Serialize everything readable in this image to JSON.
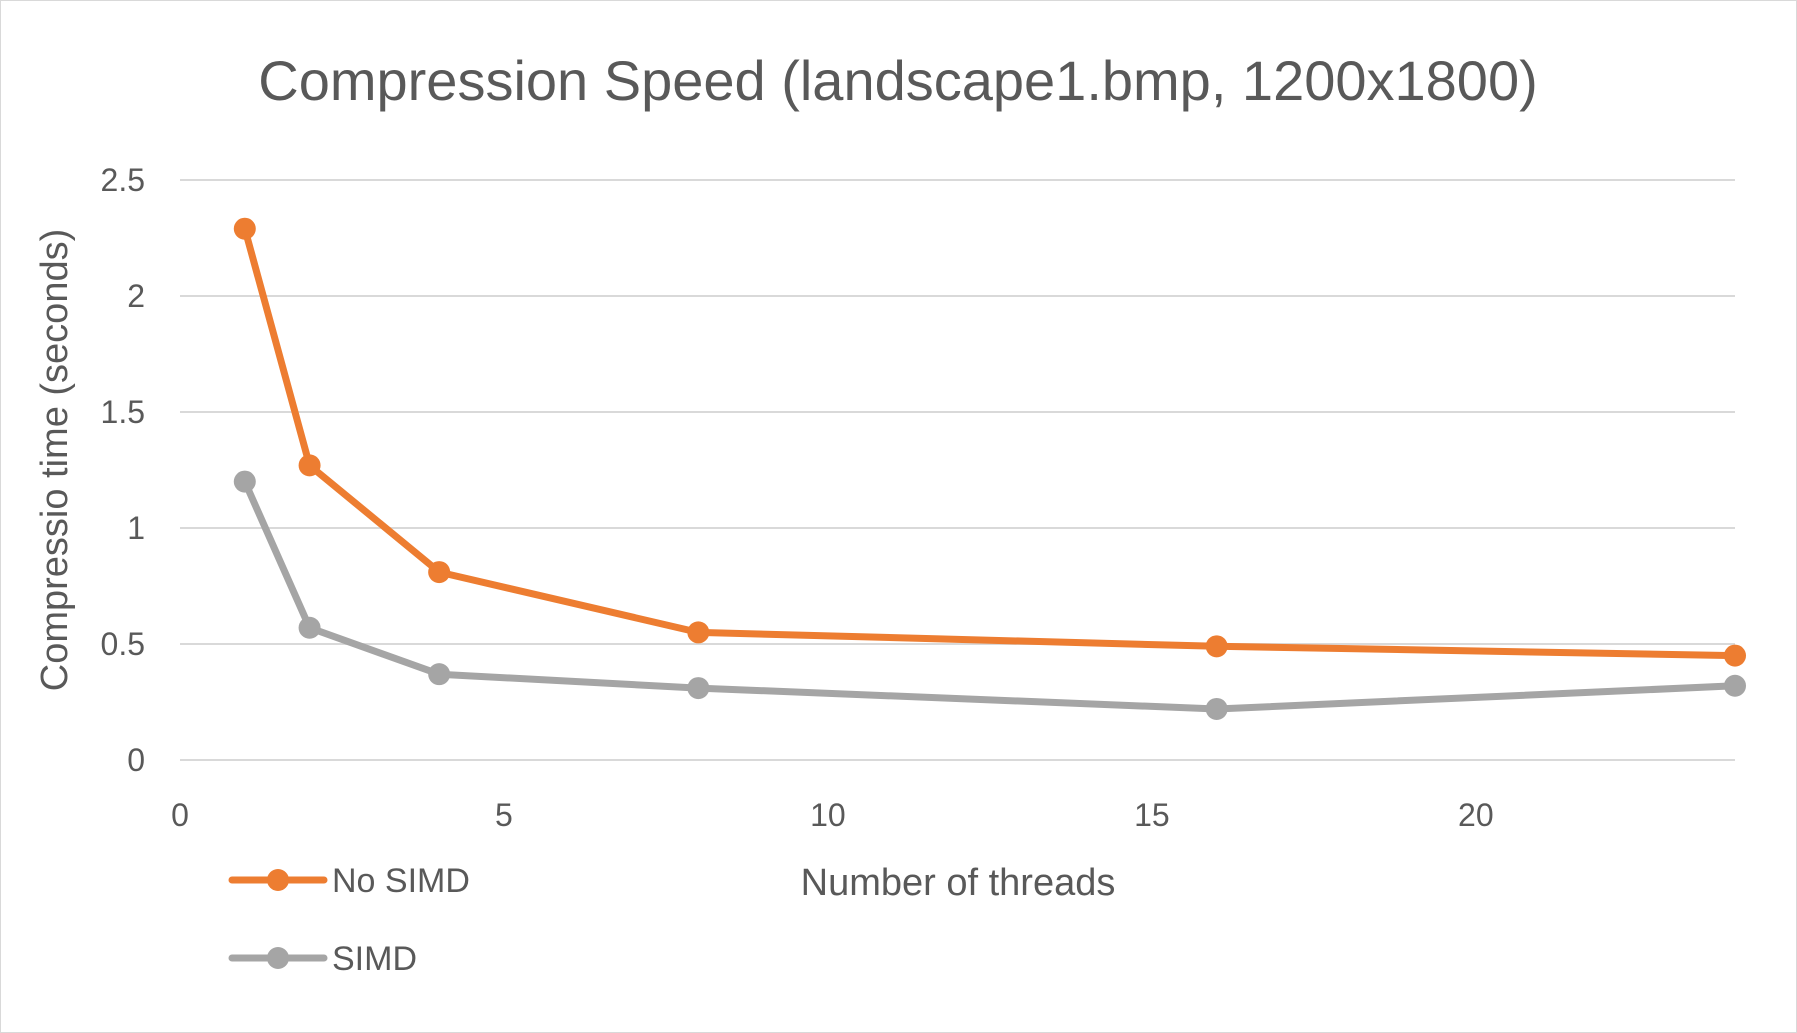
{
  "chart_data": {
    "type": "line",
    "title": "Compression Speed (landscape1.bmp, 1200x1800)",
    "xlabel": "Number of threads",
    "ylabel": "Compressio time (seconds)",
    "xlim": [
      0,
      24
    ],
    "ylim": [
      0,
      2.5
    ],
    "x_ticks": [
      "0",
      "5",
      "10",
      "15",
      "20"
    ],
    "y_ticks": [
      "0",
      "0.5",
      "1",
      "1.5",
      "2",
      "2.5"
    ],
    "grid": true,
    "legend_position": "bottom-left",
    "series": [
      {
        "name": "No SIMD",
        "color": "#ed7d31",
        "x": [
          1,
          2,
          4,
          8,
          16,
          24
        ],
        "y": [
          2.29,
          1.27,
          0.81,
          0.55,
          0.49,
          0.45
        ]
      },
      {
        "name": "SIMD",
        "color": "#a5a5a5",
        "x": [
          1,
          2,
          4,
          8,
          16,
          24
        ],
        "y": [
          1.2,
          0.57,
          0.37,
          0.31,
          0.22,
          0.32
        ]
      }
    ]
  }
}
